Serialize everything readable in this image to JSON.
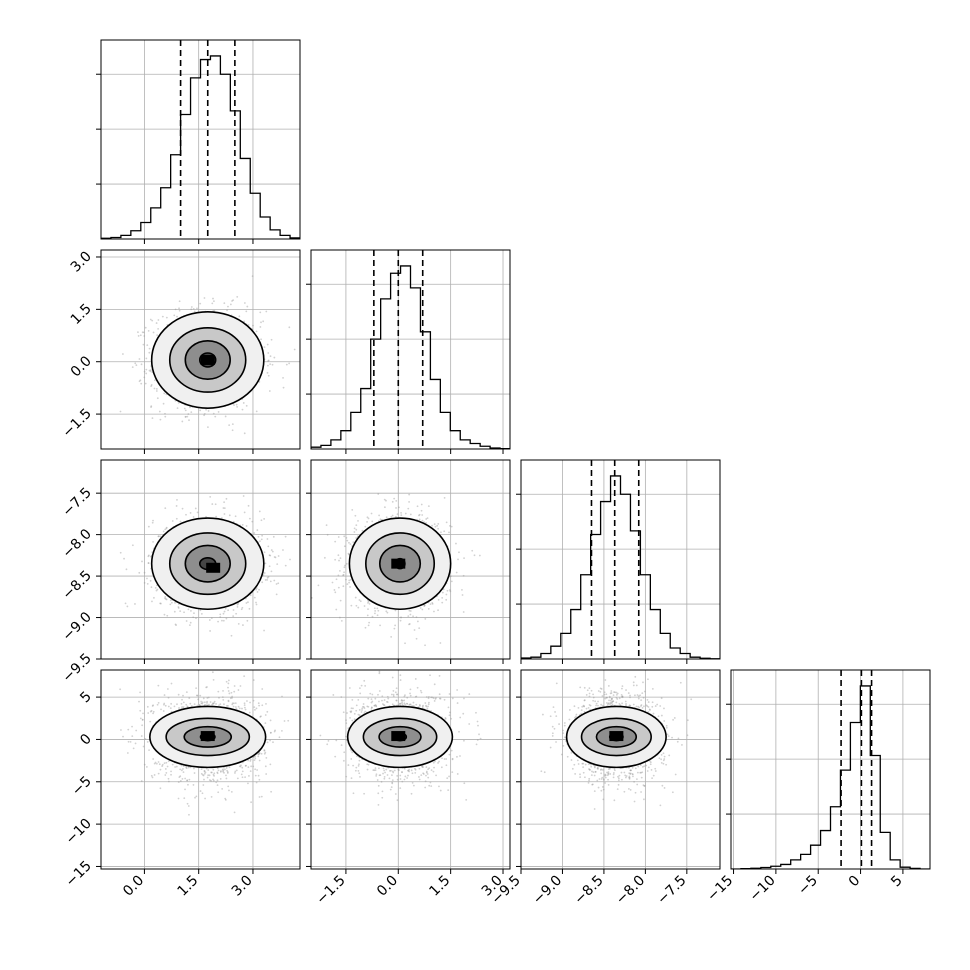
{
  "chart_data": {
    "type": "corner",
    "title": "",
    "style": {
      "hist_color": "#000000",
      "point_color": "#9a9a9a",
      "grid_color": "#b0b0b0",
      "background": "#ffffff"
    },
    "parameters": [
      {
        "index": 0,
        "range": [
          -1.2,
          4.3
        ],
        "ticks": [
          0.0,
          1.5,
          3.0
        ],
        "tick_labels": [
          "0.0",
          "1.5",
          "3.0"
        ],
        "mean": 1.75,
        "sd": 0.75,
        "quantiles": [
          1.0,
          1.75,
          2.5
        ],
        "hist_bins": [
          -1.2,
          -0.925,
          -0.65,
          -0.375,
          -0.1,
          0.175,
          0.45,
          0.725,
          1.0,
          1.275,
          1.55,
          1.825,
          2.1,
          2.375,
          2.65,
          2.925,
          3.2,
          3.475,
          3.75,
          4.025,
          4.3
        ],
        "hist_counts": [
          0.004,
          0.008,
          0.02,
          0.045,
          0.09,
          0.17,
          0.28,
          0.46,
          0.68,
          0.88,
          0.98,
          1.0,
          0.9,
          0.7,
          0.44,
          0.25,
          0.12,
          0.05,
          0.02,
          0.006
        ]
      },
      {
        "index": 1,
        "range": [
          -2.5,
          3.2
        ],
        "ticks": [
          -1.5,
          0.0,
          1.5,
          3.0
        ],
        "tick_labels": [
          "−1.5",
          "0.0",
          "1.5",
          "3.0"
        ],
        "mean": 0.05,
        "sd": 0.7,
        "quantiles": [
          -0.7,
          0.0,
          0.7
        ],
        "hist_bins": [
          -2.5,
          -2.215,
          -1.93,
          -1.645,
          -1.36,
          -1.075,
          -0.79,
          -0.505,
          -0.22,
          0.065,
          0.35,
          0.635,
          0.92,
          1.205,
          1.49,
          1.775,
          2.06,
          2.345,
          2.63,
          2.915,
          3.2
        ],
        "hist_counts": [
          0.01,
          0.02,
          0.05,
          0.1,
          0.2,
          0.33,
          0.6,
          0.82,
          0.96,
          1.0,
          0.88,
          0.64,
          0.38,
          0.2,
          0.1,
          0.05,
          0.03,
          0.015,
          0.005,
          0.002
        ]
      },
      {
        "index": 2,
        "range": [
          -9.5,
          -7.1
        ],
        "ticks": [
          -9.5,
          -9.0,
          -8.5,
          -8.0,
          -7.5
        ],
        "tick_labels": [
          "−9.5",
          "−9.0",
          "−8.5",
          "−8.0",
          "−7.5"
        ],
        "mean": -8.35,
        "sd": 0.28,
        "quantiles": [
          -8.65,
          -8.37,
          -8.08
        ],
        "hist_bins": [
          -9.5,
          -9.38,
          -9.26,
          -9.14,
          -9.02,
          -8.9,
          -8.78,
          -8.66,
          -8.54,
          -8.42,
          -8.3,
          -8.18,
          -8.06,
          -7.94,
          -7.82,
          -7.7,
          -7.58,
          -7.46,
          -7.34,
          -7.22,
          -7.1
        ],
        "hist_counts": [
          0.005,
          0.01,
          0.03,
          0.07,
          0.14,
          0.27,
          0.46,
          0.68,
          0.86,
          1.0,
          0.9,
          0.7,
          0.46,
          0.27,
          0.14,
          0.06,
          0.03,
          0.01,
          0.004,
          0.001
        ]
      },
      {
        "index": 3,
        "range": [
          -15.3,
          8.2
        ],
        "ticks": [
          -15,
          -10,
          -5,
          0,
          5
        ],
        "tick_labels": [
          "−15",
          "−10",
          "−5",
          "0",
          "5"
        ],
        "mean": 0.3,
        "sd": 2.6,
        "quantiles": [
          -2.3,
          0.1,
          1.3
        ],
        "hist_bins": [
          -15.3,
          -14.125,
          -12.95,
          -11.775,
          -10.6,
          -9.425,
          -8.25,
          -7.075,
          -5.9,
          -4.725,
          -3.55,
          -2.375,
          -1.2,
          -0.025,
          1.15,
          2.325,
          3.5,
          4.675,
          5.85,
          7.025,
          8.2
        ],
        "hist_counts": [
          0.0,
          0.002,
          0.004,
          0.008,
          0.015,
          0.025,
          0.05,
          0.08,
          0.13,
          0.21,
          0.34,
          0.54,
          0.8,
          1.0,
          0.62,
          0.2,
          0.05,
          0.01,
          0.003,
          0.0
        ]
      }
    ],
    "pairs": [
      {
        "x": 0,
        "y": 1,
        "center": [
          1.75,
          0.05
        ],
        "peak": [
          1.75,
          0.05
        ],
        "contours": [
          {
            "level": "outer",
            "rx": 1.55,
            "ry": 1.38
          },
          {
            "level": "middle",
            "rx": 1.05,
            "ry": 0.92
          },
          {
            "level": "inner",
            "rx": 0.62,
            "ry": 0.55
          },
          {
            "level": "core",
            "rx": 0.22,
            "ry": 0.2
          }
        ]
      },
      {
        "x": 0,
        "y": 2,
        "center": [
          1.75,
          -8.35
        ],
        "peak": [
          1.9,
          -8.4
        ],
        "contours": [
          {
            "level": "outer",
            "rx": 1.55,
            "ry": 0.55
          },
          {
            "level": "middle",
            "rx": 1.05,
            "ry": 0.37
          },
          {
            "level": "inner",
            "rx": 0.62,
            "ry": 0.22
          },
          {
            "level": "core",
            "rx": 0.22,
            "ry": 0.07
          }
        ]
      },
      {
        "x": 1,
        "y": 2,
        "center": [
          0.05,
          -8.35
        ],
        "peak": [
          0.0,
          -8.35
        ],
        "contours": [
          {
            "level": "outer",
            "rx": 1.45,
            "ry": 0.55
          },
          {
            "level": "middle",
            "rx": 0.98,
            "ry": 0.37
          },
          {
            "level": "inner",
            "rx": 0.58,
            "ry": 0.22
          },
          {
            "level": "core",
            "rx": 0.14,
            "ry": 0.06
          }
        ]
      },
      {
        "x": 0,
        "y": 3,
        "center": [
          1.75,
          0.3
        ],
        "peak": [
          1.75,
          0.4
        ],
        "contours": [
          {
            "level": "outer",
            "rx": 1.6,
            "ry": 3.6
          },
          {
            "level": "middle",
            "rx": 1.15,
            "ry": 2.2
          },
          {
            "level": "inner",
            "rx": 0.65,
            "ry": 1.2
          },
          {
            "level": "core",
            "rx": 0.2,
            "ry": 0.45
          }
        ]
      },
      {
        "x": 1,
        "y": 3,
        "center": [
          0.05,
          0.3
        ],
        "peak": [
          0.0,
          0.4
        ],
        "contours": [
          {
            "level": "outer",
            "rx": 1.5,
            "ry": 3.6
          },
          {
            "level": "middle",
            "rx": 1.05,
            "ry": 2.2
          },
          {
            "level": "inner",
            "rx": 0.6,
            "ry": 1.2
          },
          {
            "level": "core",
            "rx": 0.18,
            "ry": 0.45
          }
        ]
      },
      {
        "x": 2,
        "y": 3,
        "center": [
          -8.35,
          0.3
        ],
        "peak": [
          -8.35,
          0.4
        ],
        "contours": [
          {
            "level": "outer",
            "rx": 0.6,
            "ry": 3.6
          },
          {
            "level": "middle",
            "rx": 0.42,
            "ry": 2.2
          },
          {
            "level": "inner",
            "rx": 0.24,
            "ry": 1.2
          },
          {
            "level": "core",
            "rx": 0.08,
            "ry": 0.45
          }
        ]
      }
    ],
    "quantile_levels": [
      0.16,
      0.5,
      0.84
    ],
    "grid": true
  }
}
